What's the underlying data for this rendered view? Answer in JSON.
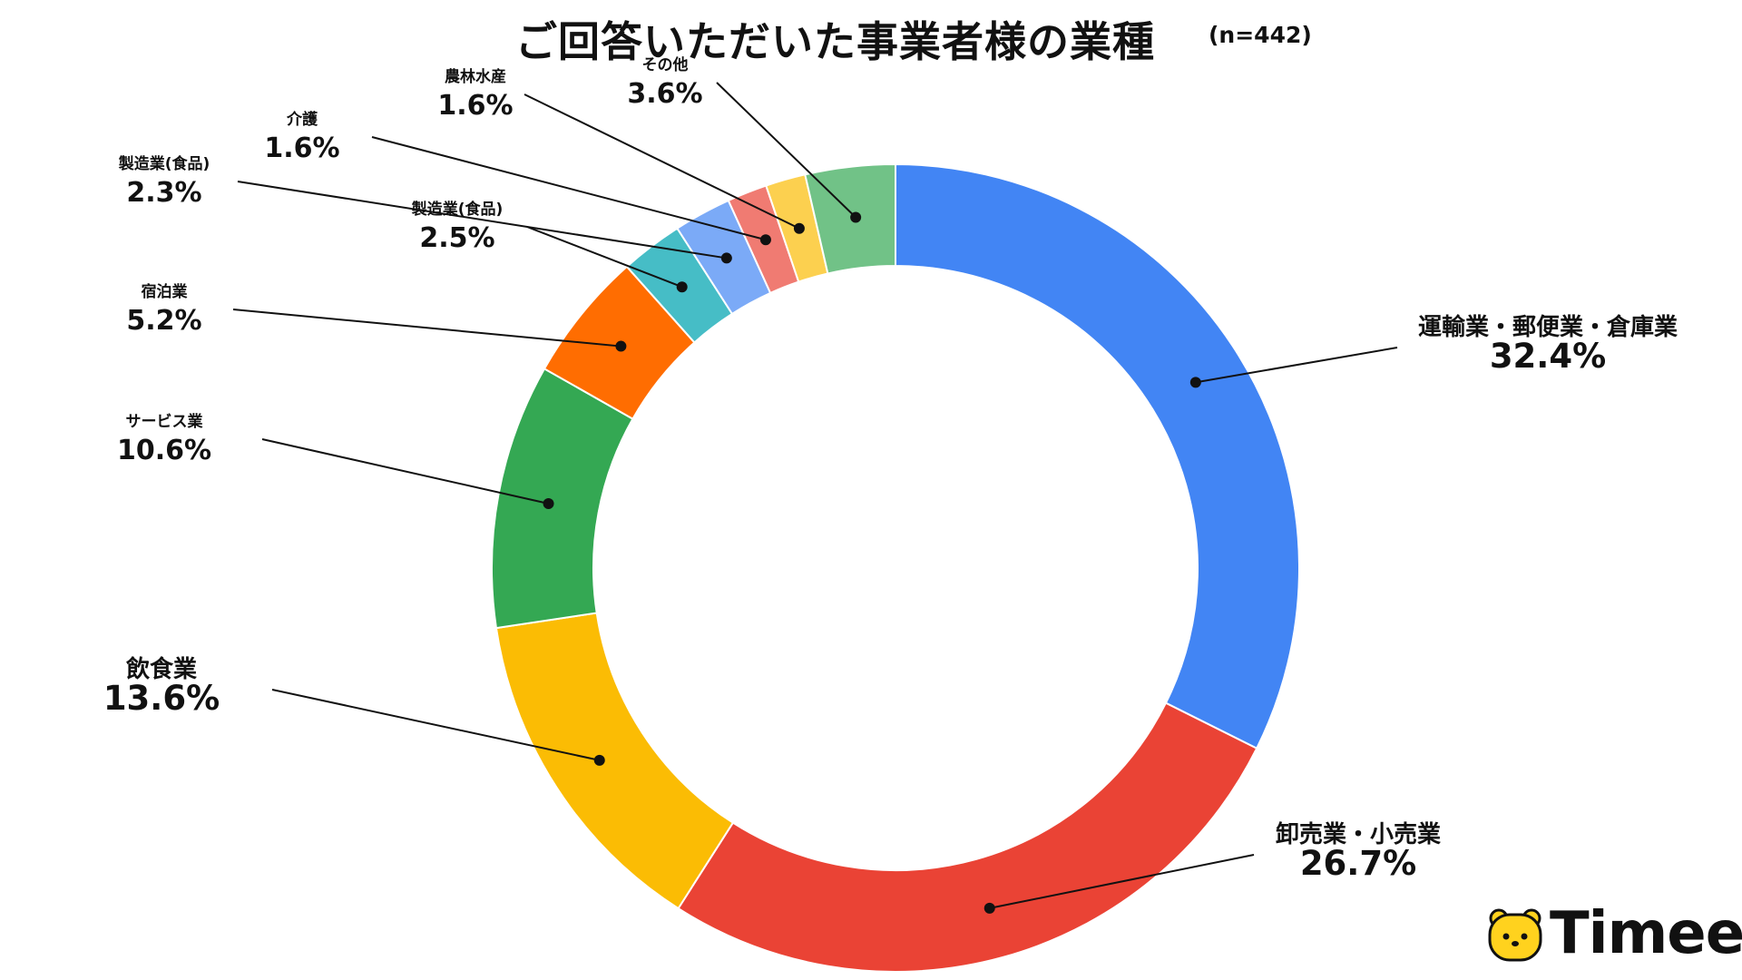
{
  "title": "ご回答いただいた事業者様の業種",
  "subtitle": "(n=442)",
  "brand": {
    "name": "Timee",
    "accent": "#FFD21E"
  },
  "chart_data": {
    "type": "donut",
    "title": "ご回答いただいた事業者様の業種",
    "n": 442,
    "series": [
      {
        "label": "運輸業・郵便業・倉庫業",
        "value": 32.4,
        "display": "32.4%",
        "color": "#4285F4"
      },
      {
        "label": "卸売業・小売業",
        "value": 26.7,
        "display": "26.7%",
        "color": "#EA4335"
      },
      {
        "label": "飲食業",
        "value": 13.6,
        "display": "13.6%",
        "color": "#FBBC04"
      },
      {
        "label": "サービス業",
        "value": 10.6,
        "display": "10.6%",
        "color": "#34A853"
      },
      {
        "label": "宿泊業",
        "value": 5.2,
        "display": "5.2%",
        "color": "#FF6D01"
      },
      {
        "label": "製造業(食品)",
        "value": 2.5,
        "display": "2.5%",
        "color": "#46BDC6"
      },
      {
        "label": "製造業(食品)",
        "value": 2.3,
        "display": "2.3%",
        "color": "#7BAAF7"
      },
      {
        "label": "介護",
        "value": 1.6,
        "display": "1.6%",
        "color": "#F07B72"
      },
      {
        "label": "農林水産",
        "value": 1.6,
        "display": "1.6%",
        "color": "#FCD04F"
      },
      {
        "label": "その他",
        "value": 3.6,
        "display": "3.6%",
        "color": "#71C287"
      }
    ]
  }
}
